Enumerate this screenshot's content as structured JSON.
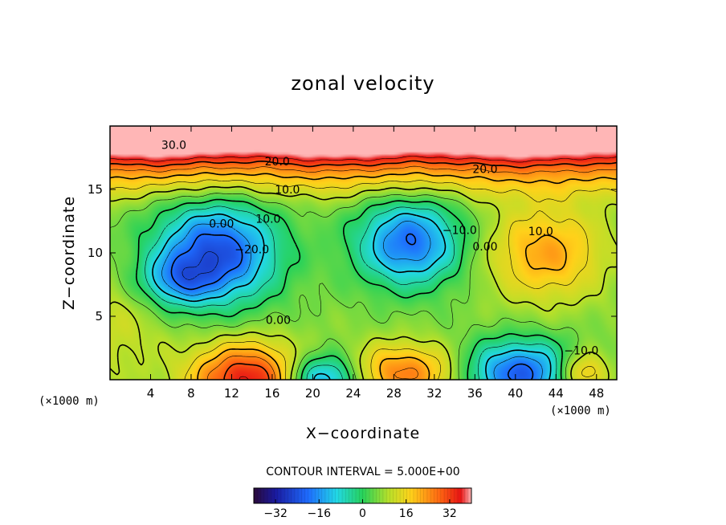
{
  "chart_data": {
    "type": "heatmap",
    "title": "zonal velocity",
    "xlabel": "X−coordinate",
    "ylabel": "Z−coordinate",
    "x_unit_left": "(×1000 m)",
    "x_unit_right": "(×1000 m)",
    "xlim": [
      0,
      50
    ],
    "ylim": [
      0,
      20
    ],
    "x_ticks": [
      4,
      8,
      12,
      16,
      20,
      24,
      28,
      32,
      36,
      40,
      44,
      48
    ],
    "y_ticks": [
      5,
      10,
      15
    ],
    "contour_interval_text": "CONTOUR INTERVAL = 5.000E+00",
    "colorbar": {
      "range": [
        -40,
        40
      ],
      "ticks": [
        -32,
        -16,
        0,
        16,
        32
      ],
      "tick_labels": [
        "−32",
        "−16",
        "0",
        "16",
        "32"
      ]
    },
    "contour_labels": [
      {
        "text": "30.0",
        "x": 6.3,
        "z": 18.5
      },
      {
        "text": "20.0",
        "x": 16.5,
        "z": 17.2
      },
      {
        "text": "20.0",
        "x": 37.0,
        "z": 16.6
      },
      {
        "text": "10.0",
        "x": 17.5,
        "z": 15.0
      },
      {
        "text": "10.0",
        "x": 15.6,
        "z": 12.7
      },
      {
        "text": "0.00",
        "x": 11.0,
        "z": 12.3
      },
      {
        "text": "−20.0",
        "x": 14.0,
        "z": 10.3
      },
      {
        "text": "−10.0",
        "x": 34.5,
        "z": 11.8
      },
      {
        "text": "0.00",
        "x": 37.0,
        "z": 10.5
      },
      {
        "text": "10.0",
        "x": 42.5,
        "z": 11.7
      },
      {
        "text": "0.00",
        "x": 16.6,
        "z": 4.7
      },
      {
        "text": "−10.0",
        "x": 46.5,
        "z": 2.3
      }
    ],
    "field_features": [
      {
        "type": "jet",
        "z": 19.5,
        "amp": 38,
        "width": 1.8
      },
      {
        "x": 10.5,
        "z": 10.0,
        "amp": -30,
        "sx": 4.2,
        "sz": 2.8
      },
      {
        "x": 6.5,
        "z": 7.8,
        "amp": -14,
        "sx": 2.5,
        "sz": 1.4
      },
      {
        "x": 29.5,
        "z": 10.8,
        "amp": -26,
        "sx": 3.6,
        "sz": 2.4
      },
      {
        "x": 43.0,
        "z": 10.0,
        "amp": 16,
        "sx": 4.0,
        "sz": 2.6
      },
      {
        "x": 13.5,
        "z": 0.0,
        "amp": 30,
        "sx": 3.8,
        "sz": 2.0
      },
      {
        "x": 29.0,
        "z": 0.5,
        "amp": 20,
        "sx": 3.8,
        "sz": 1.6
      },
      {
        "x": 21.0,
        "z": 0.0,
        "amp": -24,
        "sx": 2.6,
        "sz": 1.4
      },
      {
        "x": 40.5,
        "z": 0.5,
        "amp": -28,
        "sx": 3.8,
        "sz": 1.8
      },
      {
        "x": 46.5,
        "z": 0.5,
        "amp": 18,
        "sx": 1.8,
        "sz": 1.2
      },
      {
        "x": 0.0,
        "z": 4.0,
        "amp": 6,
        "sx": 4.0,
        "sz": 3.0
      }
    ]
  }
}
